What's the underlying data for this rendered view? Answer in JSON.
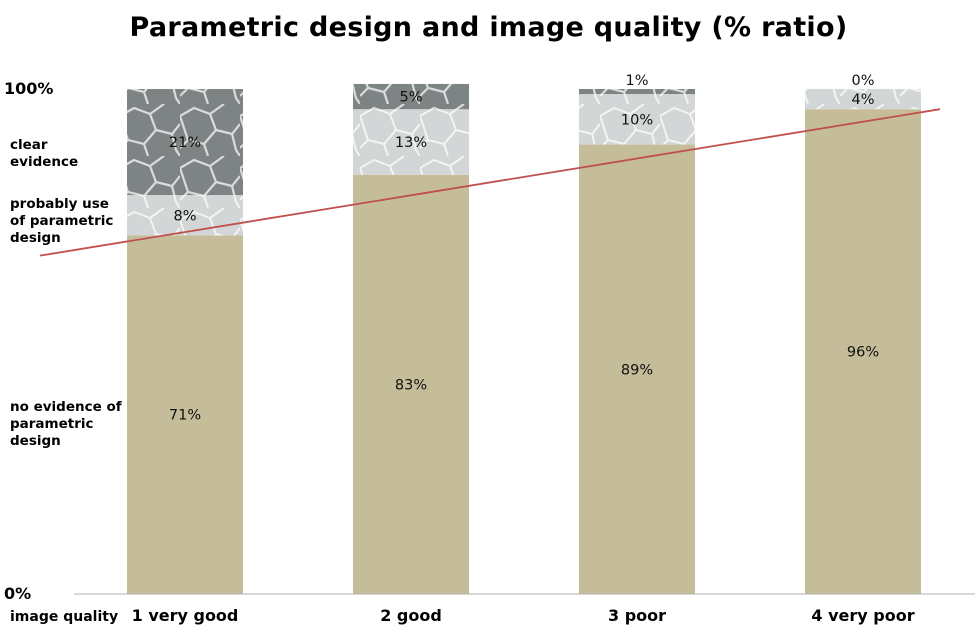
{
  "title": "Parametric design and image quality (% ratio)",
  "y_axis": {
    "top_tick": "100%",
    "bottom_tick": "0%",
    "segment_labels": {
      "clear": "clear evidence",
      "probable": "probably use of parametric design",
      "none": "no evidence of parametric design"
    }
  },
  "x_axis_label": "image quality",
  "chart_data": {
    "type": "bar",
    "stacked": true,
    "title": "Parametric design and image quality (% ratio)",
    "xlabel": "image quality",
    "ylabel": "",
    "ylim": [
      0,
      100
    ],
    "categories": [
      "1 very good",
      "2 good",
      "3 poor",
      "4 very poor"
    ],
    "series": [
      {
        "name": "no evidence of parametric design",
        "values": [
          71,
          83,
          89,
          96
        ],
        "labels": [
          "71%",
          "83%",
          "89%",
          "96%"
        ],
        "color": "#c5bd99"
      },
      {
        "name": "probably use of parametric design",
        "values": [
          8,
          13,
          10,
          4
        ],
        "labels": [
          "8%",
          "13%",
          "10%",
          "4%"
        ],
        "color": "#d9dbdb"
      },
      {
        "name": "clear evidence",
        "values": [
          21,
          5,
          1,
          0
        ],
        "labels": [
          "21%",
          "5%",
          "1%",
          "0%"
        ],
        "color": "#868b8c"
      }
    ],
    "trendline": {
      "color": "#c0504d",
      "y_start": 67,
      "y_end": 96
    },
    "legend": "left"
  }
}
